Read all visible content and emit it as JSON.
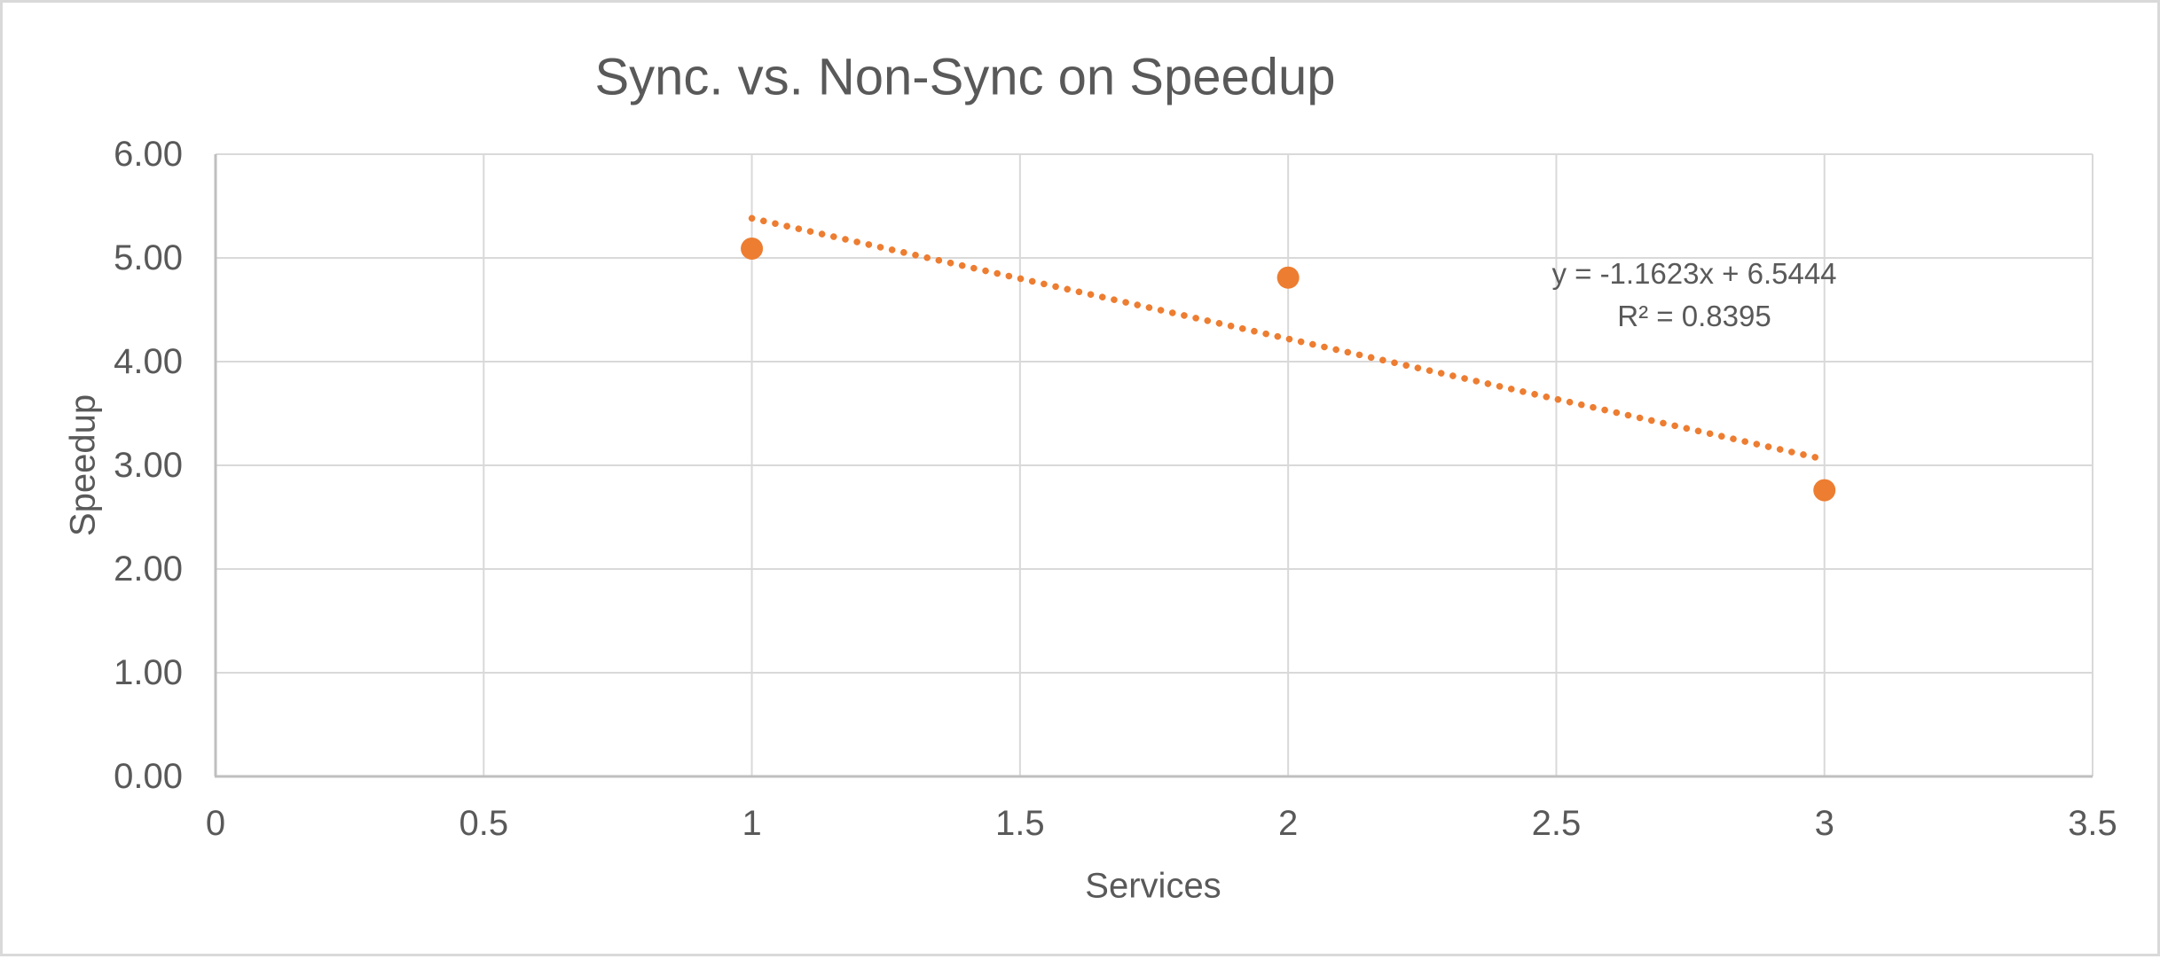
{
  "chart_data": {
    "type": "scatter",
    "title": "Sync. vs. Non-Sync on Speedup",
    "xlabel": "Services",
    "ylabel": "Speedup",
    "xlim": [
      0,
      3.5
    ],
    "ylim": [
      0,
      6
    ],
    "xticks": [
      0,
      0.5,
      1,
      1.5,
      2,
      2.5,
      3,
      3.5
    ],
    "xticklabels": [
      "0",
      "0.5",
      "1",
      "1.5",
      "2",
      "2.5",
      "3",
      "3.5"
    ],
    "yticks": [
      0,
      1,
      2,
      3,
      4,
      5,
      6
    ],
    "yticklabels": [
      "0.00",
      "1.00",
      "2.00",
      "3.00",
      "4.00",
      "5.00",
      "6.00"
    ],
    "grid": true,
    "legend": false,
    "series": [
      {
        "name": "Speedup",
        "marker": "circle",
        "color": "#ED7D31",
        "points": [
          [
            1,
            5.09
          ],
          [
            2,
            4.81
          ],
          [
            3,
            2.76
          ]
        ]
      }
    ],
    "trendline": {
      "type": "linear",
      "style": "dotted",
      "color": "#ED7D31",
      "slope": -1.1623,
      "intercept": 6.5444,
      "r_squared": 0.8395,
      "x_start": 1,
      "x_end": 3,
      "equation_label": "y = -1.1623x + 6.5444",
      "r2_label": "R² = 0.8395"
    },
    "colors": {
      "text": "#595959",
      "gridline": "#D9D9D9",
      "axis_line": "#BFBFBF",
      "series": "#ED7D31",
      "background": "#FFFFFF",
      "border": "#D9D9D9"
    }
  }
}
